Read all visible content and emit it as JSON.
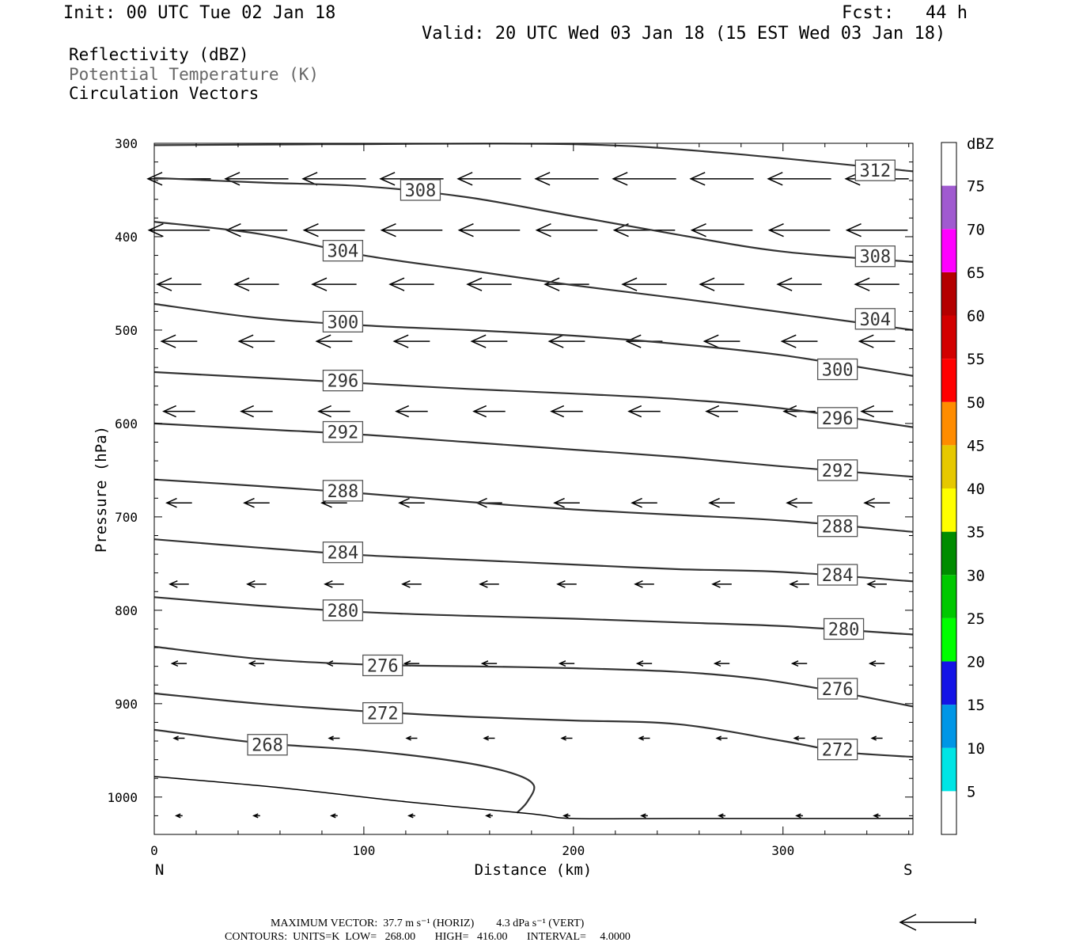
{
  "header": {
    "init": "Init: 00 UTC Tue 02 Jan 18",
    "fcst": "Fcst:   44 h",
    "valid": "Valid: 20 UTC Wed 03 Jan 18 (15 EST Wed 03 Jan 18)"
  },
  "legend": {
    "line1": "Reflectivity (dBZ)",
    "line2": "Potential Temperature (K)",
    "line3": "Circulation Vectors"
  },
  "colorbar": {
    "title": "dBZ",
    "levels": [
      "5",
      "10",
      "15",
      "20",
      "25",
      "30",
      "35",
      "40",
      "45",
      "50",
      "55",
      "60",
      "65",
      "70",
      "75"
    ],
    "colors": [
      "#00e5e5",
      "#0096e6",
      "#1414e6",
      "#00ff00",
      "#00c800",
      "#008c00",
      "#ffff00",
      "#e6c800",
      "#ff8c00",
      "#ff0000",
      "#d20000",
      "#b40000",
      "#ff00ff",
      "#a05ad0"
    ]
  },
  "footer": {
    "line1": "MAXIMUM VECTOR:  37.7 m s⁻¹ (HORIZ)        4.3 dPa s⁻¹ (VERT)",
    "line2": "CONTOURS:  UNITS=K  LOW=   268.00       HIGH=   416.00       INTERVAL=     4.0000"
  },
  "chart_data": {
    "type": "line",
    "title": "",
    "xlabel": "Distance (km)",
    "ylabel": "Pressure (hPa)",
    "xlim": [
      0,
      362
    ],
    "ylim": [
      1040,
      300
    ],
    "x_ticks": [
      0,
      100,
      200,
      300
    ],
    "y_ticks": [
      300,
      400,
      500,
      600,
      700,
      800,
      900,
      1000
    ],
    "left_end_label": "N",
    "right_end_label": "S",
    "grid": false,
    "series": [
      {
        "name": "268",
        "x": [
          0,
          50,
          100,
          145,
          170,
          181,
          178,
          173
        ],
        "y": [
          928,
          942,
          950,
          962,
          974,
          987,
          1005,
          1017
        ],
        "label_x": 54,
        "label_y": 944
      },
      {
        "name": "272",
        "x": [
          0,
          50,
          100,
          150,
          200,
          250,
          300,
          330,
          362
        ],
        "y": [
          889,
          900,
          908,
          914,
          918,
          922,
          940,
          952,
          957
        ],
        "label_x": 109,
        "label_y": 910
      },
      {
        "name": "272",
        "x": [],
        "y": [],
        "label_x": 326,
        "label_y": 949
      },
      {
        "name": "276",
        "x": [
          0,
          50,
          100,
          150,
          200,
          250,
          290,
          330,
          362
        ],
        "y": [
          839,
          852,
          858,
          860,
          862,
          866,
          874,
          889,
          903
        ],
        "label_x": 109,
        "label_y": 859
      },
      {
        "name": "276",
        "x": [],
        "y": [],
        "label_x": 326,
        "label_y": 884
      },
      {
        "name": "280",
        "x": [
          0,
          50,
          100,
          150,
          200,
          250,
          300,
          362
        ],
        "y": [
          786,
          795,
          802,
          806,
          809,
          813,
          817,
          826
        ],
        "label_x": 90,
        "label_y": 800
      },
      {
        "name": "280",
        "x": [],
        "y": [],
        "label_x": 329,
        "label_y": 820
      },
      {
        "name": "284",
        "x": [
          0,
          50,
          100,
          150,
          200,
          250,
          300,
          362
        ],
        "y": [
          724,
          733,
          741,
          746,
          751,
          756,
          759,
          769
        ],
        "label_x": 90,
        "label_y": 738
      },
      {
        "name": "284",
        "x": [],
        "y": [],
        "label_x": 326,
        "label_y": 762
      },
      {
        "name": "288",
        "x": [
          0,
          50,
          100,
          150,
          200,
          250,
          300,
          362
        ],
        "y": [
          660,
          667,
          675,
          684,
          692,
          698,
          704,
          716
        ],
        "label_x": 90,
        "label_y": 672
      },
      {
        "name": "288",
        "x": [],
        "y": [],
        "label_x": 326,
        "label_y": 710
      },
      {
        "name": "292",
        "x": [
          0,
          50,
          100,
          150,
          200,
          250,
          300,
          362
        ],
        "y": [
          600,
          606,
          612,
          620,
          628,
          636,
          646,
          657
        ],
        "label_x": 90,
        "label_y": 609
      },
      {
        "name": "292",
        "x": [],
        "y": [],
        "label_x": 326,
        "label_y": 650
      },
      {
        "name": "296",
        "x": [
          0,
          50,
          100,
          150,
          200,
          250,
          300,
          362
        ],
        "y": [
          545,
          551,
          557,
          563,
          568,
          574,
          584,
          604
        ],
        "label_x": 90,
        "label_y": 554
      },
      {
        "name": "296",
        "x": [],
        "y": [],
        "label_x": 326,
        "label_y": 594
      },
      {
        "name": "300",
        "x": [
          0,
          50,
          100,
          150,
          200,
          250,
          300,
          362
        ],
        "y": [
          472,
          487,
          495,
          500,
          506,
          515,
          527,
          549
        ],
        "label_x": 90,
        "label_y": 491
      },
      {
        "name": "300",
        "x": [],
        "y": [],
        "label_x": 326,
        "label_y": 542
      },
      {
        "name": "304",
        "x": [
          0,
          50,
          100,
          150,
          200,
          250,
          300,
          362
        ],
        "y": [
          384,
          397,
          420,
          436,
          452,
          466,
          481,
          500
        ],
        "label_x": 90,
        "label_y": 415
      },
      {
        "name": "304",
        "x": [],
        "y": [],
        "label_x": 344,
        "label_y": 488
      },
      {
        "name": "308",
        "x": [
          0,
          50,
          100,
          150,
          200,
          250,
          300,
          362
        ],
        "y": [
          337,
          342,
          346,
          358,
          378,
          398,
          416,
          427
        ],
        "label_x": 127,
        "label_y": 350
      },
      {
        "name": "308",
        "x": [],
        "y": [],
        "label_x": 344,
        "label_y": 421
      },
      {
        "name": "312",
        "x": [
          0,
          80,
          200,
          270,
          362
        ],
        "y": [
          302,
          301,
          301,
          310,
          330
        ],
        "label_x": 344,
        "label_y": 329
      }
    ],
    "vectors": {
      "pressure_levels": [
        338,
        393,
        451,
        512,
        587,
        685,
        772,
        857,
        937,
        1020
      ],
      "x_start": 12,
      "x_spacing": 37,
      "count_per_row": 10,
      "length_km": [
        30,
        29,
        21,
        17,
        15,
        12,
        9,
        7,
        5,
        3
      ]
    }
  }
}
